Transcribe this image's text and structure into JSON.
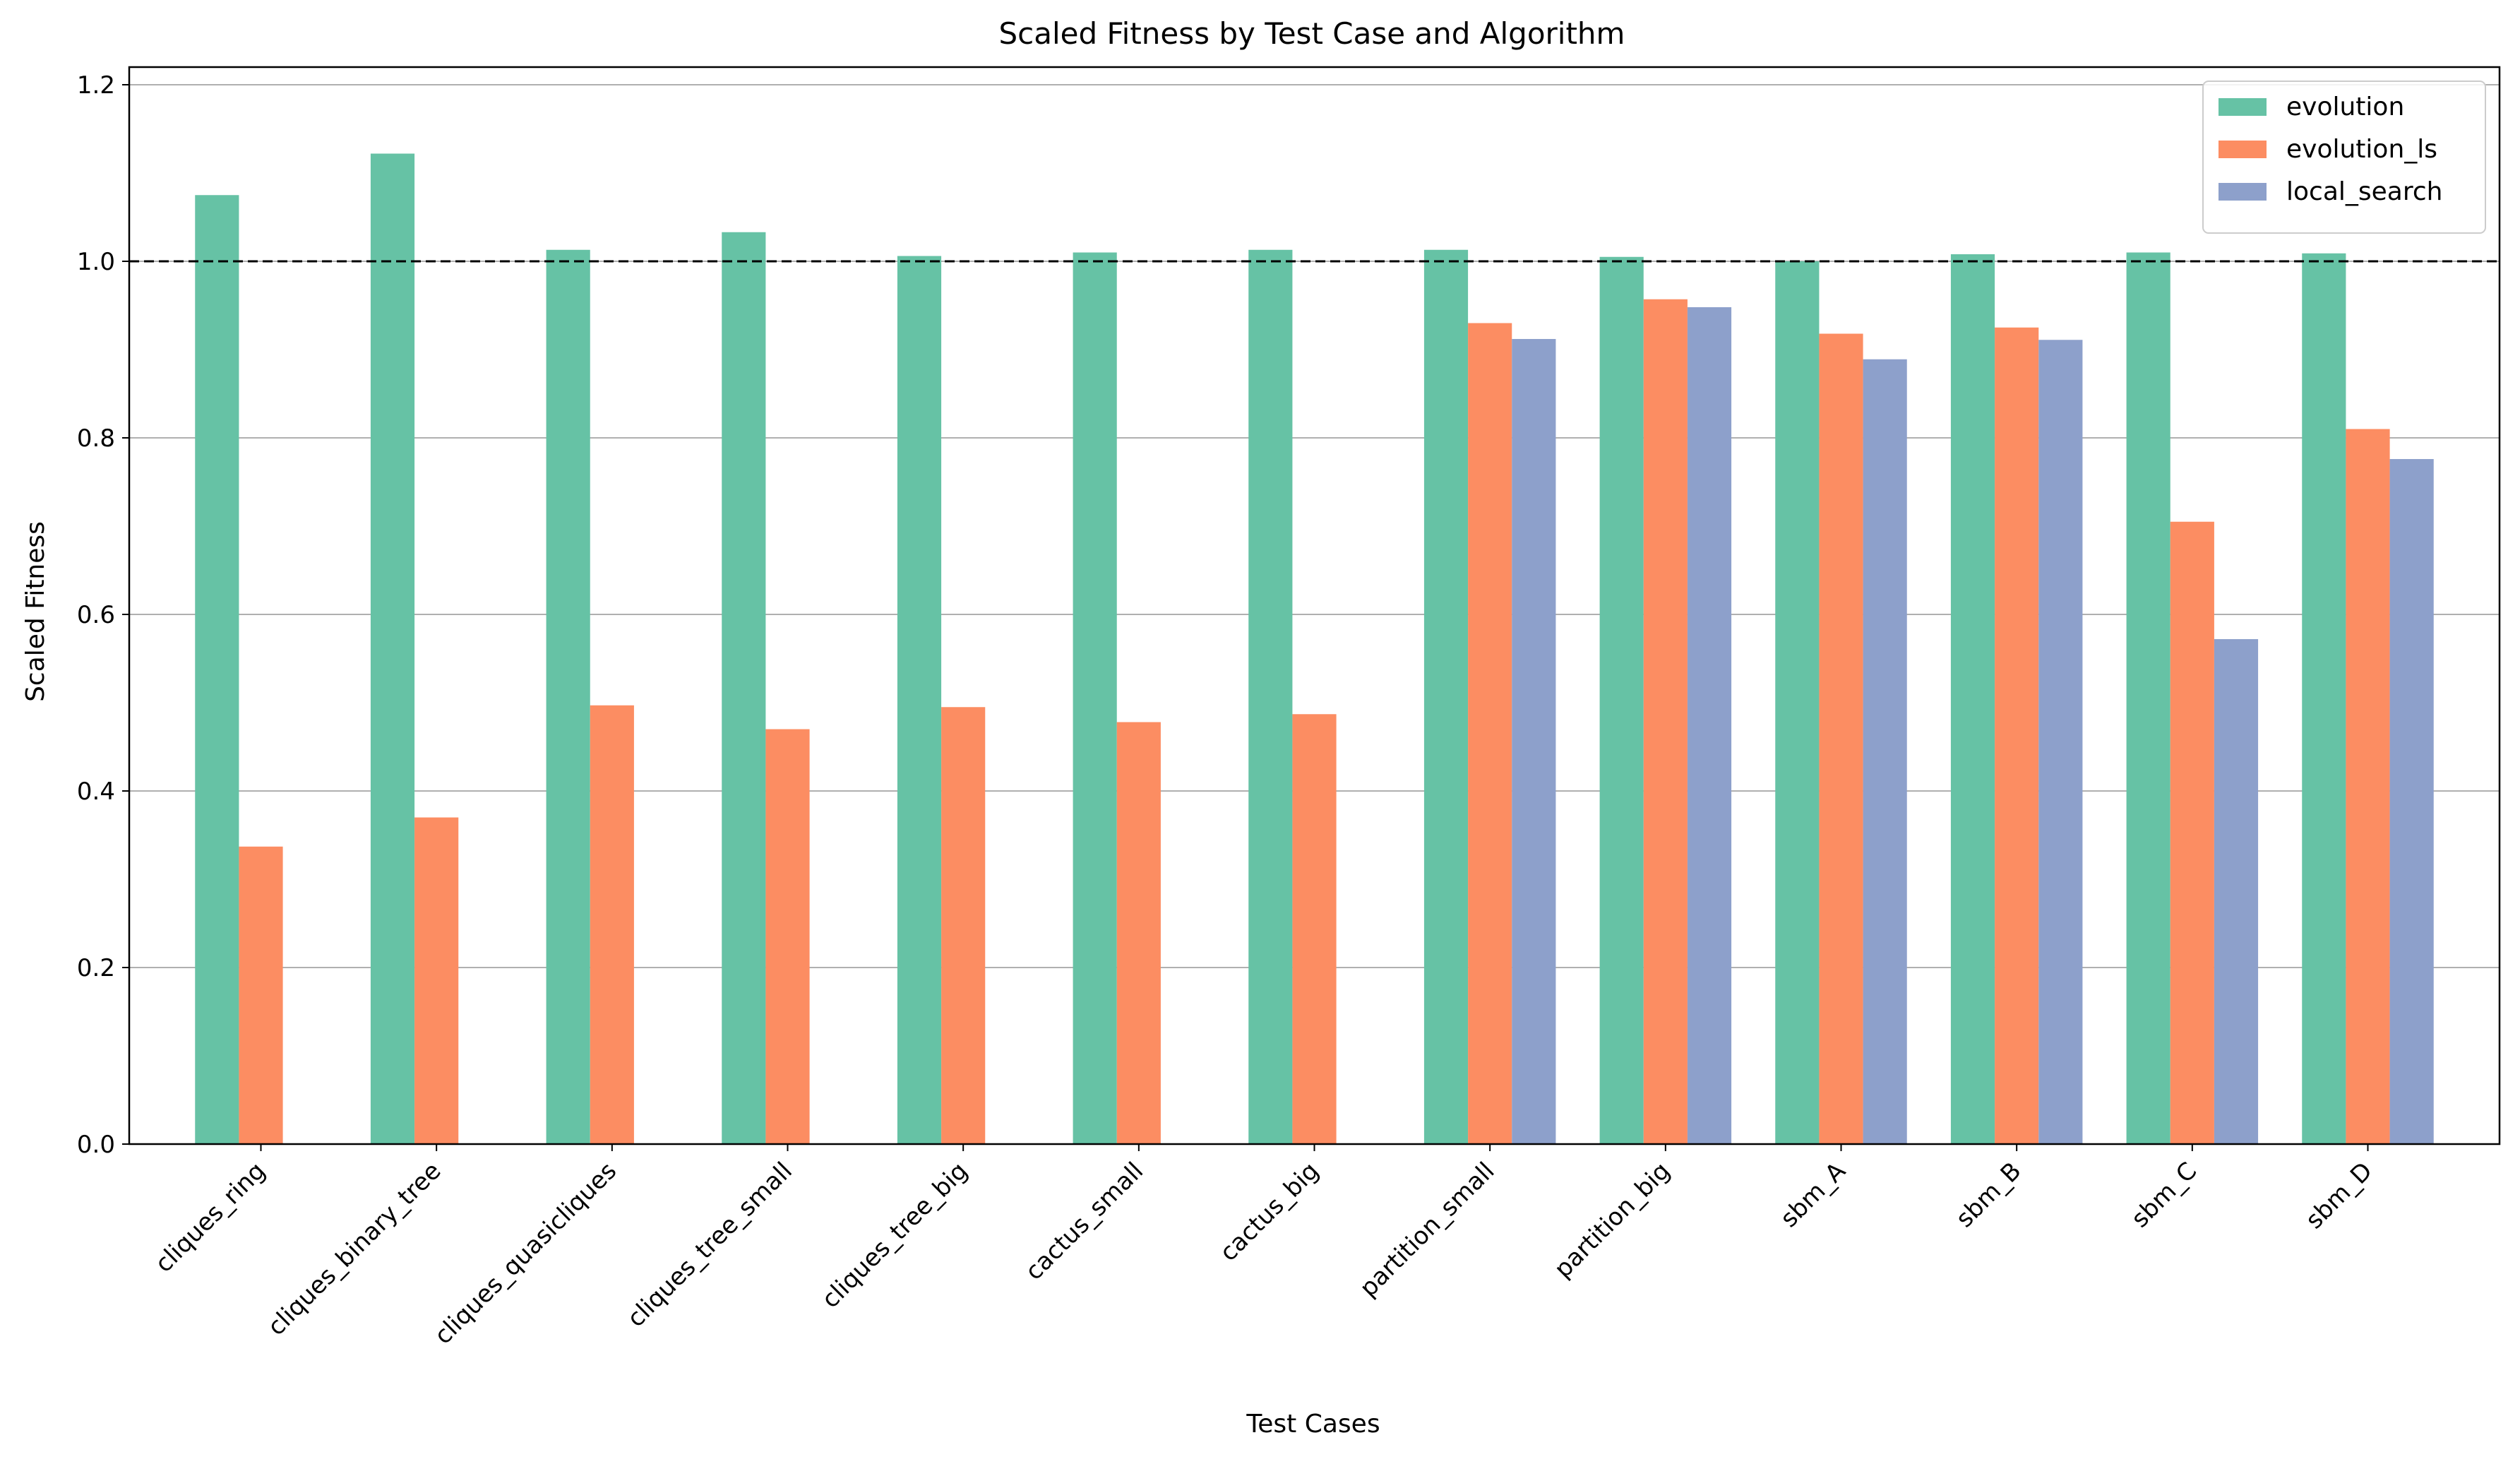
{
  "chart_data": {
    "type": "bar",
    "title": "Scaled Fitness by Test Case and Algorithm",
    "xlabel": "Test Cases",
    "ylabel": "Scaled Fitness",
    "ylim": [
      0,
      1.22
    ],
    "yticks": [
      0.0,
      0.2,
      0.4,
      0.6,
      0.8,
      1.0,
      1.2
    ],
    "ytick_labels": [
      "0.0",
      "0.2",
      "0.4",
      "0.6",
      "0.8",
      "1.0",
      "1.2"
    ],
    "grid": "horizontal",
    "reference_line": {
      "y": 1.0,
      "style": "dashed",
      "color": "#000000"
    },
    "legend_position": "top-right",
    "categories": [
      "cliques_ring",
      "cliques_binary_tree",
      "cliques_quasicliques",
      "cliques_tree_small",
      "cliques_tree_big",
      "cactus_small",
      "cactus_big",
      "partition_small",
      "partition_big",
      "sbm_A",
      "sbm_B",
      "sbm_C",
      "sbm_D"
    ],
    "series": [
      {
        "name": "evolution",
        "color": "#66c2a5",
        "values": [
          1.075,
          1.122,
          1.013,
          1.033,
          1.006,
          1.01,
          1.013,
          1.013,
          1.005,
          1.0,
          1.008,
          1.01,
          1.009
        ]
      },
      {
        "name": "evolution_ls",
        "color": "#fc8d62",
        "values": [
          0.337,
          0.37,
          0.497,
          0.47,
          0.495,
          0.478,
          0.487,
          0.93,
          0.957,
          0.918,
          0.925,
          0.705,
          0.81
        ]
      },
      {
        "name": "local_search",
        "color": "#8da0cb",
        "values": [
          null,
          null,
          null,
          null,
          null,
          null,
          null,
          0.912,
          0.948,
          0.889,
          0.911,
          0.572,
          0.776
        ]
      }
    ]
  }
}
